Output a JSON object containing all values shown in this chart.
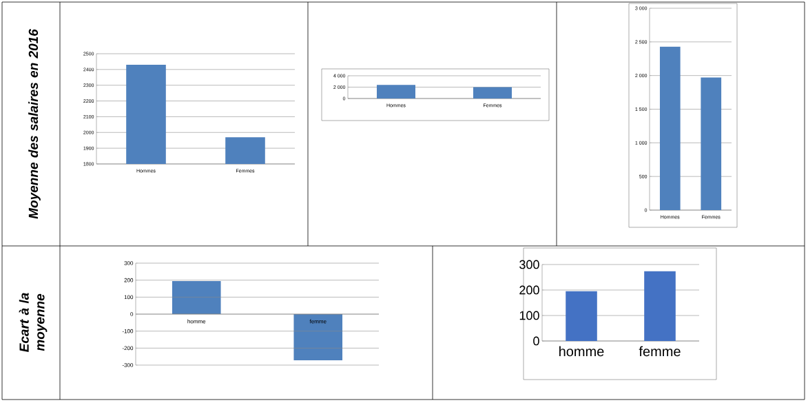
{
  "chart_data": [
    {
      "type": "bar",
      "ylabel": "Moyenne des salaires en 2016",
      "categories": [
        "Hommes",
        "Femmes"
      ],
      "values": [
        2430,
        1970
      ],
      "color": "#4f81bd",
      "ylim": [
        1800,
        2500
      ],
      "yticks": [
        1800,
        1900,
        2000,
        2100,
        2200,
        2300,
        2400,
        2500
      ],
      "grid": "y"
    },
    {
      "type": "bar",
      "categories": [
        "Hommes",
        "Femmes"
      ],
      "values": [
        2400,
        2000
      ],
      "color": "#4f81bd",
      "ylim": [
        0,
        4000
      ],
      "yticks": [
        0,
        {
          "value": 2000,
          "label": "2 000"
        },
        {
          "value": 4000,
          "label": "4 000"
        }
      ],
      "grid": "y"
    },
    {
      "type": "bar",
      "categories": [
        "Hommes",
        "Femmes"
      ],
      "values": [
        2430,
        1970
      ],
      "color": "#4f81bd",
      "ylim": [
        0,
        3000
      ],
      "yticks": [
        0,
        500,
        {
          "value": 1000,
          "label": "1 000"
        },
        {
          "value": 1500,
          "label": "1 500"
        },
        {
          "value": 2000,
          "label": "2 000"
        },
        {
          "value": 2500,
          "label": "2 500"
        },
        {
          "value": 3000,
          "label": "3 000"
        }
      ],
      "grid": "y"
    },
    {
      "type": "bar",
      "ylabel": "Ecart à la moyenne",
      "categories": [
        "homme",
        "femme"
      ],
      "values": [
        195,
        -272
      ],
      "color": "#4f81bd",
      "ylim": [
        -300,
        300
      ],
      "yticks": [
        -300,
        -200,
        -100,
        0,
        100,
        200,
        300
      ],
      "grid": "y"
    },
    {
      "type": "bar",
      "categories": [
        "homme",
        "femme"
      ],
      "values": [
        195,
        274
      ],
      "color": "#4472c4",
      "ylim": [
        0,
        300
      ],
      "yticks": [
        0,
        100,
        200,
        300
      ],
      "grid": "y"
    }
  ]
}
